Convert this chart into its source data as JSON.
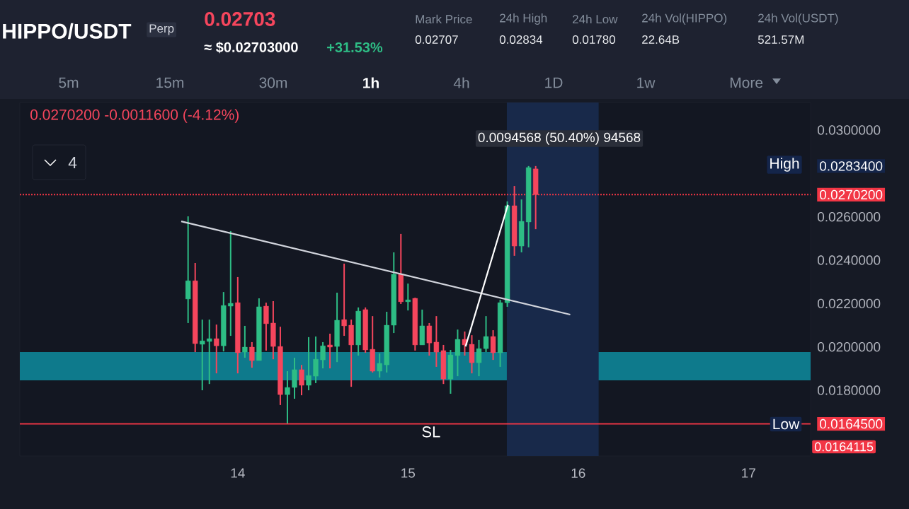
{
  "chart_data": {
    "type": "candlestick",
    "title": "HIPPO/USDT",
    "x": [
      13.7083,
      13.75,
      13.7917,
      13.8333,
      13.875,
      13.9167,
      13.9583,
      14,
      14.0417,
      14.0833,
      14.125,
      14.1667,
      14.2083,
      14.25,
      14.2917,
      14.3333,
      14.375,
      14.4167,
      14.4583,
      14.5,
      14.5417,
      14.5833,
      14.625,
      14.6667,
      14.7083,
      14.75,
      14.7917,
      14.8333,
      14.875,
      14.9167,
      14.9583,
      15,
      15.0417,
      15.0833,
      15.125,
      15.1667,
      15.2083,
      15.25,
      15.2917,
      15.3333,
      15.375,
      15.4167,
      15.4583,
      15.5,
      15.5417,
      15.5833,
      15.625,
      15.6667,
      15.7083,
      15.75
    ],
    "ohlc": [
      [
        0.02221,
        0.02602,
        0.0211,
        0.02305
      ],
      [
        0.02305,
        0.02387,
        0.01976,
        0.02015
      ],
      [
        0.02012,
        0.02126,
        0.018,
        0.02028
      ],
      [
        0.02025,
        0.02126,
        0.01829,
        0.02038
      ],
      [
        0.02038,
        0.02103,
        0.01878,
        0.02005
      ],
      [
        0.02005,
        0.02253,
        0.01979,
        0.02191
      ],
      [
        0.02188,
        0.02534,
        0.02051,
        0.02201
      ],
      [
        0.02204,
        0.02322,
        0.01878,
        0.01973
      ],
      [
        0.01976,
        0.02097,
        0.0195,
        0.01999
      ],
      [
        0.01999,
        0.02022,
        0.01904,
        0.01937
      ],
      [
        0.01937,
        0.02224,
        0.01937,
        0.02185
      ],
      [
        0.02188,
        0.02204,
        0.01983,
        0.02107
      ],
      [
        0.0211,
        0.02211,
        0.01943,
        0.02002
      ],
      [
        0.02002,
        0.02093,
        0.01732,
        0.0178
      ],
      [
        0.0178,
        0.01888,
        0.01647,
        0.01813
      ],
      [
        0.01813,
        0.0195,
        0.01761,
        0.01895
      ],
      [
        0.01895,
        0.01917,
        0.01777,
        0.01823
      ],
      [
        0.01823,
        0.02045,
        0.018,
        0.01868
      ],
      [
        0.01865,
        0.02048,
        0.01833,
        0.01943
      ],
      [
        0.0194,
        0.02022,
        0.01901,
        0.02005
      ],
      [
        0.02009,
        0.02061,
        0.01901,
        0.01999
      ],
      [
        0.02002,
        0.0225,
        0.0193,
        0.02123
      ],
      [
        0.02126,
        0.02384,
        0.02051,
        0.02097
      ],
      [
        0.021,
        0.02126,
        0.01816,
        0.02009
      ],
      [
        0.02009,
        0.02182,
        0.0196,
        0.02165
      ],
      [
        0.02172,
        0.02182,
        0.01973,
        0.01986
      ],
      [
        0.01989,
        0.02142,
        0.01882,
        0.01888
      ],
      [
        0.01888,
        0.0197,
        0.01859,
        0.01924
      ],
      [
        0.01917,
        0.02162,
        0.01882,
        0.021
      ],
      [
        0.021,
        0.02436,
        0.02064,
        0.02335
      ],
      [
        0.02335,
        0.02521,
        0.02198,
        0.02208
      ],
      [
        0.02208,
        0.02292,
        0.02168,
        0.02217
      ],
      [
        0.02224,
        0.02227,
        0.01983,
        0.02009
      ],
      [
        0.02009,
        0.02172,
        0.02009,
        0.02097
      ],
      [
        0.02097,
        0.0211,
        0.0196,
        0.02018
      ],
      [
        0.02022,
        0.02142,
        0.01908,
        0.01976
      ],
      [
        0.01983,
        0.02009,
        0.01829,
        0.01852
      ],
      [
        0.01852,
        0.01986,
        0.01784,
        0.01963
      ],
      [
        0.0196,
        0.0208,
        0.01865,
        0.02035
      ],
      [
        0.02035,
        0.02071,
        0.0196,
        0.02009
      ],
      [
        0.02012,
        0.02054,
        0.01878,
        0.01927
      ],
      [
        0.01927,
        0.02032,
        0.01865,
        0.01992
      ],
      [
        0.01992,
        0.02142,
        0.01976,
        0.02048
      ],
      [
        0.02048,
        0.02077,
        0.0194,
        0.01973
      ],
      [
        0.01973,
        0.02217,
        0.01908,
        0.02204
      ],
      [
        0.02204,
        0.02671,
        0.02185,
        0.02651
      ],
      [
        0.02651,
        0.02742,
        0.0242,
        0.02465
      ],
      [
        0.02465,
        0.0268,
        0.02436,
        0.02579
      ],
      [
        0.02576,
        0.02834,
        0.02459,
        0.02827
      ],
      [
        0.02821,
        0.02834,
        0.02543,
        0.02702
      ]
    ],
    "colors": [
      "#2ebd85",
      "#f6465d",
      "#2ebd85",
      "#2ebd85",
      "#f6465d",
      "#2ebd85",
      "#2ebd85",
      "#f6465d",
      "#2ebd85",
      "#f6465d",
      "#2ebd85",
      "#f6465d",
      "#f6465d",
      "#f6465d",
      "#2ebd85",
      "#2ebd85",
      "#f6465d",
      "#2ebd85",
      "#2ebd85",
      "#2ebd85",
      "#f6465d",
      "#2ebd85",
      "#f6465d",
      "#f6465d",
      "#2ebd85",
      "#f6465d",
      "#f6465d",
      "#2ebd85",
      "#2ebd85",
      "#2ebd85",
      "#f6465d",
      "#2ebd85",
      "#f6465d",
      "#2ebd85",
      "#f6465d",
      "#f6465d",
      "#f6465d",
      "#2ebd85",
      "#2ebd85",
      "#f6465d",
      "#f6465d",
      "#2ebd85",
      "#2ebd85",
      "#f6465d",
      "#2ebd85",
      "#2ebd85",
      "#f6465d",
      "#2ebd85",
      "#2ebd85",
      "#f6465d"
    ],
    "series": [
      {
        "type": "line",
        "color": "#d1d4dc",
        "x": [
          13.668,
          15.953
        ],
        "values": [
          0.02579,
          0.02149
        ]
      },
      {
        "type": "line",
        "color": "#ffffff",
        "x": [
          15.338,
          15.587
        ],
        "values": [
          0.02002,
          0.02655
        ]
      }
    ],
    "xlim": [
      12.72,
      17.365
    ],
    "ylim": [
      0.01497,
      0.03127
    ],
    "xticks": [
      14,
      15,
      16,
      17
    ],
    "yticks": [
      {
        "value": 0.018,
        "label": "0.0180000"
      },
      {
        "value": 0.02,
        "label": "0.0200000"
      },
      {
        "value": 0.022,
        "label": "0.0220000"
      },
      {
        "value": 0.024,
        "label": "0.0240000"
      },
      {
        "value": 0.026,
        "label": "0.0260000"
      },
      {
        "value": 0.03,
        "label": "0.0300000"
      },
      {
        "value": 0.02834,
        "label": "0.0283400"
      },
      {
        "value": 0.02702,
        "label": "0.0270200"
      },
      {
        "value": 0.01645,
        "label": "0.0164500"
      }
    ],
    "ref_lines": [
      {
        "axis": "y",
        "value": 0.01645,
        "label": "SL",
        "color": "#f23645",
        "line_style": "solid"
      },
      {
        "axis": "y",
        "value": 0.02702,
        "label": null,
        "color": "#f23645",
        "line_style": "dotted"
      }
    ],
    "bands": [
      {
        "axis": "y",
        "from": 0.01846,
        "to": 0.01976,
        "label": null,
        "color": "#0e7a8c"
      },
      {
        "axis": "x",
        "from": 15.58,
        "to": 16.12,
        "label": null,
        "color": "#18294a"
      }
    ],
    "annotations": [
      "0.0094568 (50.40%) 94568",
      "High",
      "Low",
      "Perp",
      "0.02703",
      "≈ $0.02703000",
      "+31.53%",
      "Mark Price",
      "0.02707",
      "24h High",
      "0.02834",
      "24h Low",
      "0.01780",
      "24h Vol(HIPPO)",
      "22.64B",
      "24h Vol(USDT)",
      "521.57M",
      "5m",
      "15m",
      "30m",
      "1h",
      "4h",
      "1D",
      "1w",
      "More",
      "0.0270200  -0.0011600 (-4.12%)",
      "4",
      "0.0164115"
    ]
  }
}
